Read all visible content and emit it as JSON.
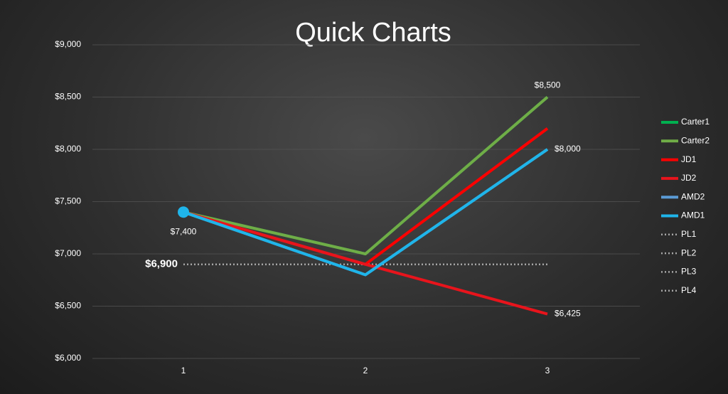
{
  "chart_data": {
    "type": "line",
    "title": "Quick Charts",
    "categories": [
      "1",
      "2",
      "3"
    ],
    "series": [
      {
        "name": "Carter1",
        "color": "#00b050",
        "values": [
          7400,
          7000,
          8500
        ],
        "value_labels": [
          null,
          null,
          "$8,500"
        ]
      },
      {
        "name": "Carter2",
        "color": "#70ad47",
        "values": [
          7400,
          7000,
          8500
        ]
      },
      {
        "name": "JD1",
        "color": "#ff0000",
        "values": [
          7400,
          6900,
          8200
        ]
      },
      {
        "name": "JD2",
        "color": "#e8141c",
        "values": [
          7400,
          6900,
          6425
        ],
        "value_labels": [
          null,
          null,
          "$6,425"
        ]
      },
      {
        "name": "AMD2",
        "color": "#5b9bd5",
        "values": [
          7400,
          6800,
          8000
        ]
      },
      {
        "name": "AMD1",
        "color": "#1fb5ea",
        "values": [
          7400,
          6800,
          8000
        ],
        "value_labels": [
          "$7,400",
          null,
          "$8,000"
        ],
        "marker_first": true
      },
      {
        "name": "PL1",
        "color": "#a6a6a6",
        "dashed": true,
        "values": [
          6900,
          6900,
          6900
        ],
        "value_labels": [
          "$6,900",
          null,
          null
        ]
      },
      {
        "name": "PL2",
        "color": "#a6a6a6",
        "dashed": true,
        "values": [
          6900,
          6900,
          6900
        ]
      },
      {
        "name": "PL3",
        "color": "#a6a6a6",
        "dashed": true,
        "values": [
          6900,
          6900,
          6900
        ]
      },
      {
        "name": "PL4",
        "color": "#a6a6a6",
        "dashed": true,
        "values": [
          6900,
          6900,
          6900
        ]
      }
    ],
    "ylim": [
      6000,
      9000
    ],
    "yticks": [
      {
        "value": 6000,
        "label": "$6,000"
      },
      {
        "value": 6500,
        "label": "$6,500"
      },
      {
        "value": 7000,
        "label": "$7,000"
      },
      {
        "value": 7500,
        "label": "$7,500"
      },
      {
        "value": 8000,
        "label": "$8,000"
      },
      {
        "value": 8500,
        "label": "$8,500"
      },
      {
        "value": 9000,
        "label": "$9,000"
      }
    ],
    "grid": true,
    "legend": "right"
  }
}
